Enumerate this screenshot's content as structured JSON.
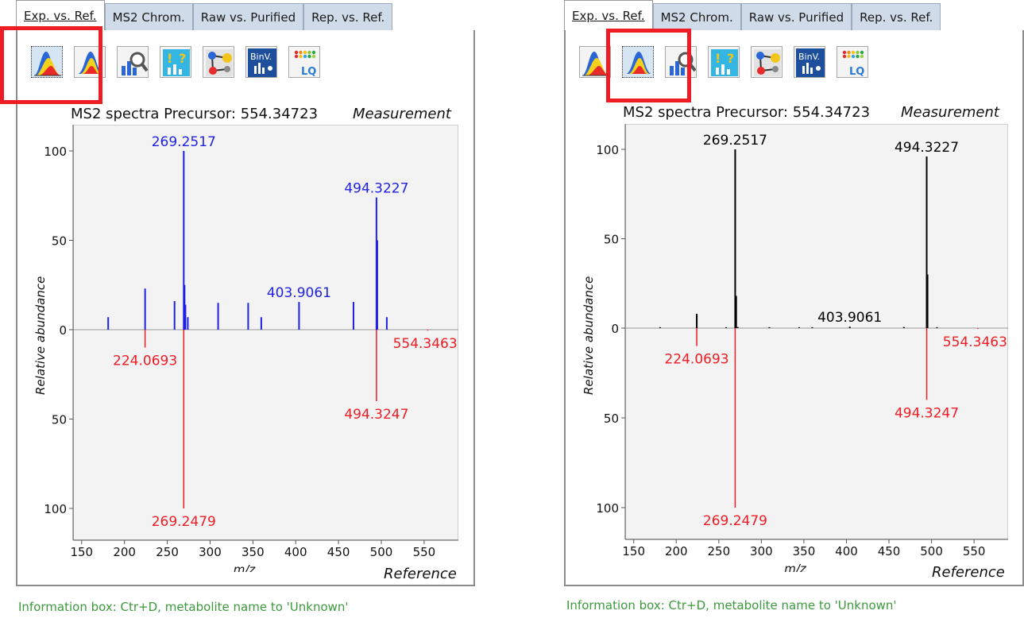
{
  "tabs": [
    "Exp. vs. Ref.",
    "MS2 Chrom.",
    "Raw vs. Purified",
    "Rep. vs. Ref."
  ],
  "toolbar_icons": [
    "spectrum-overlay-icon",
    "spectrum-mirror-icon",
    "spectrum-zoom-icon",
    "compare-icon",
    "network-icon",
    "binv-icon",
    "lq-icon"
  ],
  "binv_label": "BinV.",
  "lq_label": "LQ",
  "plot_title": "MS2 spectra Precursor: 554.34723",
  "measurement_label": "Measurement",
  "reference_label": "Reference",
  "y_axis_label": "Relative abundance",
  "x_axis_label": "m/z",
  "info_text": "Information box: Ctr+D, metabolite name to 'Unknown'",
  "colors": {
    "measurement_left": "#1f1fe6",
    "measurement_right": "#000000",
    "reference": "#ee1c24",
    "highlight": "#ee1c24",
    "info": "#3c9a3c"
  },
  "chart_data": [
    {
      "type": "bar",
      "title": "MS2 spectra Precursor: 554.34723",
      "xlabel": "m/z",
      "ylabel": "Relative abundance",
      "xlim": [
        140,
        590
      ],
      "xticks": [
        150,
        200,
        250,
        300,
        350,
        400,
        450,
        500,
        550
      ],
      "yticks_top": [
        0,
        50,
        100
      ],
      "yticks_bottom": [
        50,
        100
      ],
      "series": [
        {
          "name": "Measurement",
          "x": [
            181.0,
            224.1,
            258.5,
            269.25,
            270.2,
            271.2,
            274.0,
            309.4,
            344.5,
            359.8,
            403.9061,
            467.5,
            494.3227,
            495.3,
            506.4
          ],
          "values": [
            7,
            23,
            16,
            100,
            25,
            14,
            7,
            15,
            15,
            7,
            15.5,
            15.5,
            74,
            50,
            7
          ],
          "labels": {
            "269.25": "269.2517",
            "403.9061": "403.9061",
            "494.3227": "494.3227"
          }
        },
        {
          "name": "Reference",
          "x": [
            224.0693,
            269.2479,
            494.3247,
            554.3463
          ],
          "values": [
            10,
            100,
            40,
            0.5
          ],
          "labels": {
            "224.0693": "224.0693",
            "269.2479": "269.2479",
            "494.3247": "494.3247",
            "554.3463": "554.3463"
          }
        }
      ]
    },
    {
      "type": "bar",
      "title": "MS2 spectra Precursor: 554.34723",
      "xlabel": "m/z",
      "ylabel": "Relative abundance",
      "xlim": [
        140,
        590
      ],
      "xticks": [
        150,
        200,
        250,
        300,
        350,
        400,
        450,
        500,
        550
      ],
      "yticks_top": [
        0,
        50,
        100
      ],
      "yticks_bottom": [
        50,
        100
      ],
      "series": [
        {
          "name": "Measurement",
          "x": [
            181.0,
            224.1,
            258.5,
            269.2517,
            270.4,
            272.3,
            309.4,
            344.5,
            359.8,
            403.9061,
            467.5,
            494.3227,
            495.3,
            506.4
          ],
          "values": [
            0.5,
            8,
            0.5,
            100,
            18,
            0.6,
            0.5,
            0.5,
            0.5,
            0.8,
            0.6,
            96,
            30,
            0.5
          ],
          "labels": {
            "269.2517": "269.2517",
            "403.9061": "403.9061",
            "494.3227": "494.3227"
          }
        },
        {
          "name": "Reference",
          "x": [
            224.0693,
            269.2479,
            494.3247,
            554.3463
          ],
          "values": [
            10,
            100,
            40,
            0.5
          ],
          "labels": {
            "224.0693": "224.0693",
            "269.2479": "269.2479",
            "494.3247": "494.3247",
            "554.3463": "554.3463"
          }
        }
      ]
    }
  ]
}
